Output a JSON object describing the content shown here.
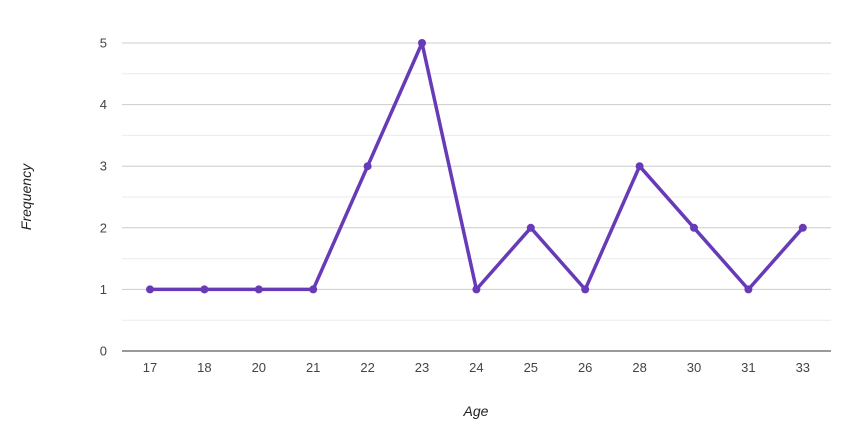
{
  "chart_data": {
    "type": "line",
    "xlabel": "Age",
    "ylabel": "Frequency",
    "categories": [
      "17",
      "18",
      "20",
      "21",
      "22",
      "23",
      "24",
      "25",
      "26",
      "28",
      "30",
      "31",
      "33"
    ],
    "series": [
      {
        "values": [
          1,
          1,
          1,
          1,
          3,
          5,
          1,
          2,
          1,
          3,
          2,
          1,
          2
        ]
      }
    ],
    "ylim": [
      0,
      5
    ],
    "yticks": [
      0,
      1,
      2,
      3,
      4,
      5
    ],
    "grid": true,
    "minor_grid": true,
    "legend": "none",
    "colors": {
      "line": "#673ab7",
      "grid_major": "#cccccc",
      "grid_minor": "#ebebeb",
      "axis": "#333333"
    }
  }
}
